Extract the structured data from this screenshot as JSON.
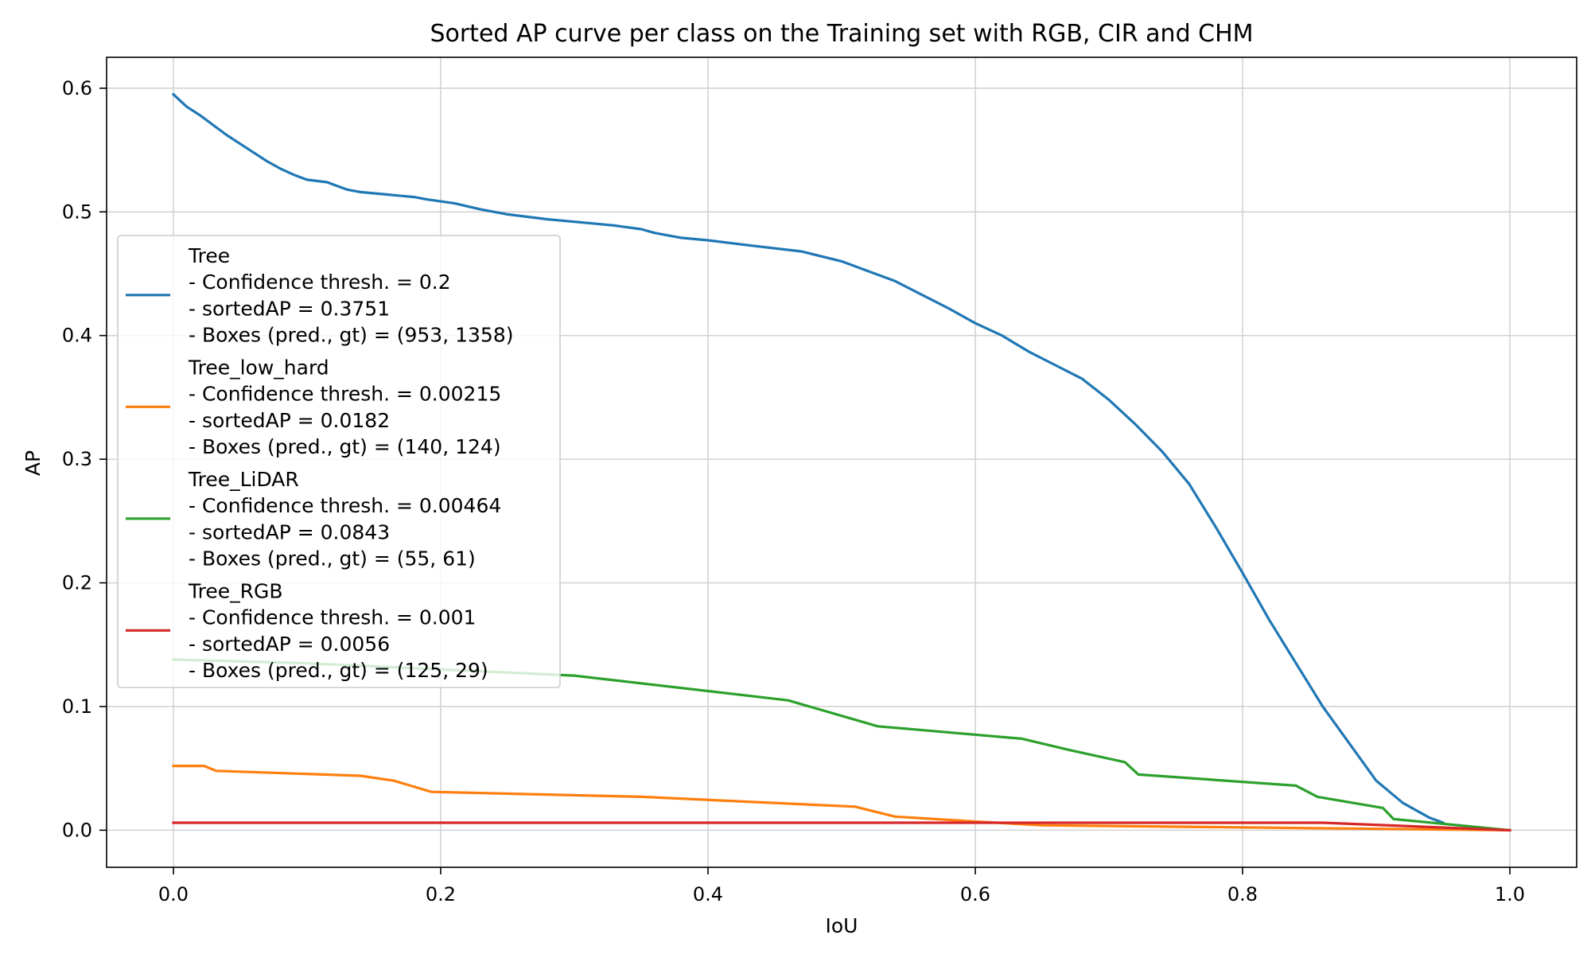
{
  "chart_data": {
    "type": "line",
    "title": "Sorted AP curve per class on the Training set with RGB, CIR and CHM",
    "xlabel": "IoU",
    "ylabel": "AP",
    "xlim": [
      -0.05,
      1.05
    ],
    "ylim": [
      -0.03,
      0.625
    ],
    "xticks": [
      0.0,
      0.2,
      0.4,
      0.6,
      0.8,
      1.0
    ],
    "xtick_labels": [
      "0.0",
      "0.2",
      "0.4",
      "0.6",
      "0.8",
      "1.0"
    ],
    "yticks": [
      0.0,
      0.1,
      0.2,
      0.3,
      0.4,
      0.5,
      0.6
    ],
    "ytick_labels": [
      "0.0",
      "0.1",
      "0.2",
      "0.3",
      "0.4",
      "0.5",
      "0.6"
    ],
    "grid": true,
    "legend_position": "center-left",
    "series": [
      {
        "name": "Tree",
        "color": "#1f77b4",
        "legend_lines": [
          "Tree",
          "- Confidence thresh. = 0.2",
          "- sortedAP = 0.3751",
          "- Boxes (pred., gt) = (953, 1358)"
        ],
        "x": [
          0.0,
          0.005,
          0.01,
          0.02,
          0.03,
          0.04,
          0.05,
          0.06,
          0.07,
          0.08,
          0.09,
          0.1,
          0.115,
          0.125,
          0.13,
          0.14,
          0.16,
          0.18,
          0.19,
          0.21,
          0.23,
          0.25,
          0.28,
          0.3,
          0.33,
          0.35,
          0.36,
          0.38,
          0.4,
          0.43,
          0.47,
          0.5,
          0.52,
          0.54,
          0.56,
          0.58,
          0.6,
          0.62,
          0.64,
          0.66,
          0.68,
          0.7,
          0.72,
          0.74,
          0.76,
          0.78,
          0.8,
          0.82,
          0.84,
          0.86,
          0.88,
          0.9,
          0.92,
          0.94,
          0.95
        ],
        "y": [
          0.595,
          0.59,
          0.585,
          0.578,
          0.57,
          0.562,
          0.555,
          0.548,
          0.541,
          0.535,
          0.53,
          0.526,
          0.524,
          0.52,
          0.518,
          0.516,
          0.514,
          0.512,
          0.51,
          0.507,
          0.502,
          0.498,
          0.494,
          0.492,
          0.489,
          0.486,
          0.483,
          0.479,
          0.477,
          0.473,
          0.468,
          0.46,
          0.452,
          0.444,
          0.433,
          0.422,
          0.41,
          0.4,
          0.387,
          0.376,
          0.365,
          0.348,
          0.328,
          0.306,
          0.28,
          0.245,
          0.208,
          0.17,
          0.135,
          0.1,
          0.07,
          0.04,
          0.022,
          0.01,
          0.006
        ]
      },
      {
        "name": "Tree_low_hard",
        "color": "#ff7f0e",
        "legend_lines": [
          "Tree_low_hard",
          "- Confidence thresh. = 0.00215",
          "- sortedAP = 0.0182",
          "- Boxes (pred., gt) = (140, 124)"
        ],
        "x": [
          0.0,
          0.023,
          0.032,
          0.14,
          0.165,
          0.193,
          0.35,
          0.51,
          0.54,
          0.6,
          0.65,
          1.0
        ],
        "y": [
          0.052,
          0.052,
          0.048,
          0.044,
          0.04,
          0.031,
          0.027,
          0.019,
          0.011,
          0.007,
          0.004,
          0.0
        ]
      },
      {
        "name": "Tree_LiDAR",
        "color": "#2ca02c",
        "legend_lines": [
          "Tree_LiDAR",
          "- Confidence thresh. = 0.00464",
          "- sortedAP = 0.0843",
          "- Boxes (pred., gt) = (55, 61)"
        ],
        "x": [
          0.0,
          0.1,
          0.3,
          0.46,
          0.527,
          0.635,
          0.67,
          0.712,
          0.722,
          0.84,
          0.856,
          0.905,
          0.913,
          1.0
        ],
        "y": [
          0.138,
          0.135,
          0.125,
          0.105,
          0.084,
          0.074,
          0.065,
          0.055,
          0.045,
          0.036,
          0.027,
          0.018,
          0.009,
          0.0
        ]
      },
      {
        "name": "Tree_RGB",
        "color": "#d62728",
        "legend_lines": [
          "Tree_RGB",
          "- Confidence thresh. = 0.001",
          "- sortedAP = 0.0056",
          "- Boxes (pred., gt) = (125, 29)"
        ],
        "x": [
          0.0,
          0.86,
          1.0
        ],
        "y": [
          0.006,
          0.006,
          0.0
        ]
      }
    ]
  }
}
